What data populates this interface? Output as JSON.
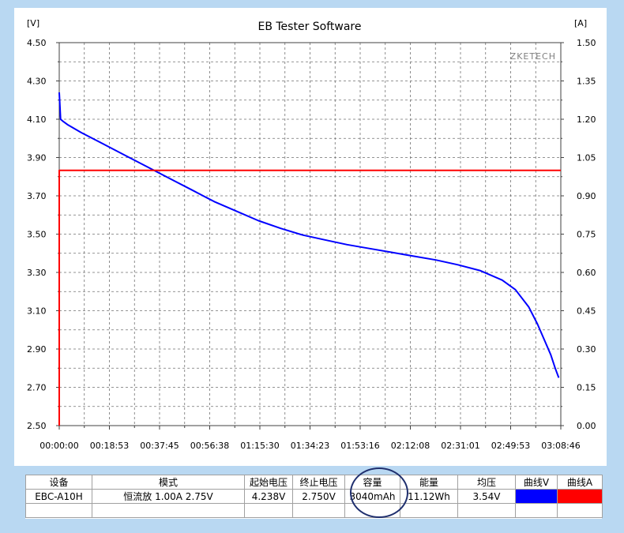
{
  "chart_data": {
    "type": "line",
    "title": "EB Tester Software",
    "watermark": "ZKETECH",
    "y_left_unit": "[V]",
    "y_right_unit": "[A]",
    "y_left_ticks": [
      "4.50",
      "4.30",
      "4.10",
      "3.90",
      "3.70",
      "3.50",
      "3.30",
      "3.10",
      "2.90",
      "2.70",
      "2.50"
    ],
    "y_right_ticks": [
      "1.50",
      "1.35",
      "1.20",
      "1.05",
      "0.90",
      "0.75",
      "0.60",
      "0.45",
      "0.30",
      "0.15",
      "0.00"
    ],
    "x_ticks": [
      "00:00:00",
      "00:18:53",
      "00:37:45",
      "00:56:38",
      "01:15:30",
      "01:34:23",
      "01:53:16",
      "02:12:08",
      "02:31:01",
      "02:49:53",
      "03:08:46"
    ],
    "ylim_left": [
      2.5,
      4.5
    ],
    "ylim_right": [
      0,
      1.5
    ],
    "xlim_seconds": [
      0,
      11326
    ],
    "grid": true,
    "series": [
      {
        "axis": "left",
        "color": "#0000ff",
        "x_seconds": [
          0,
          30,
          80,
          200,
          500,
          1000,
          1500,
          2000,
          2500,
          3000,
          3500,
          4000,
          4500,
          5000,
          5500,
          6000,
          6500,
          7000,
          7500,
          8000,
          8500,
          9000,
          9500,
          10000,
          10300,
          10600,
          10800,
          10950,
          11100,
          11200,
          11280
        ],
        "values": [
          4.24,
          4.1,
          4.09,
          4.07,
          4.03,
          3.97,
          3.91,
          3.85,
          3.79,
          3.73,
          3.67,
          3.62,
          3.57,
          3.53,
          3.495,
          3.47,
          3.445,
          3.425,
          3.405,
          3.385,
          3.365,
          3.34,
          3.31,
          3.26,
          3.21,
          3.12,
          3.03,
          2.95,
          2.87,
          2.8,
          2.75
        ]
      },
      {
        "axis": "right",
        "color": "#ff0000",
        "x_seconds": [
          0,
          0,
          60,
          11326
        ],
        "values": [
          0,
          1.0,
          1.0,
          1.0
        ]
      }
    ]
  },
  "table": {
    "headers": [
      "设备",
      "模式",
      "起始电压",
      "终止电压",
      "容量",
      "能量",
      "均压",
      "曲线V",
      "曲线A"
    ],
    "row": [
      "EBC-A10H",
      "恒流放 1.00A 2.75V",
      "4.238V",
      "2.750V",
      "3040mAh",
      "11.12Wh",
      "3.54V"
    ],
    "curve_v_color": "#0000ff",
    "curve_a_color": "#ff0000"
  }
}
